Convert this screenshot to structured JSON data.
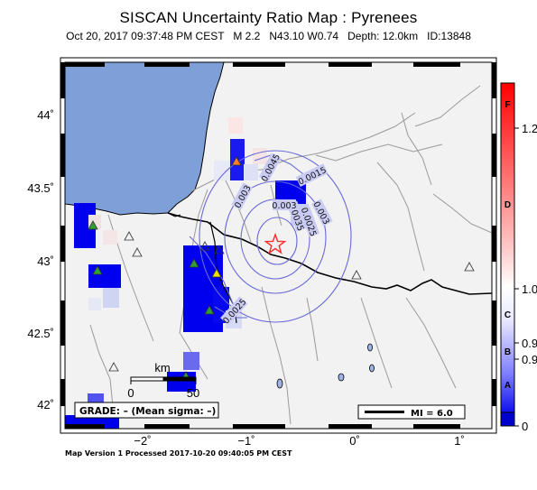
{
  "title": "SISCAN Uncertainty Ratio Map : Pyrenees",
  "subtitle": {
    "datetime": "Oct 20, 2017 09:37:48 PM CEST",
    "magnitude": "M 2.2",
    "location": "N43.10 W0.74",
    "depth": "Depth: 12.0km",
    "event_id": "ID:13848"
  },
  "axes": {
    "lon_labels": [
      "−2˚",
      "−1˚",
      "0˚",
      "1˚"
    ],
    "lat_labels": [
      "44˚",
      "43.5˚",
      "43˚",
      "42.5˚",
      "42˚"
    ]
  },
  "scale_bar": {
    "unit": "km",
    "min_label": "0",
    "max_label": "50"
  },
  "grade_box": "GRADE: – (Mean sigma: –)",
  "mi_box": "MI = 6.0",
  "contour_labels": [
    "0.0045",
    "0.0015",
    "0.003",
    "0.0035",
    "0.003",
    "0.0025",
    "0.003",
    "0.0025"
  ],
  "colorbar": {
    "letters": [
      "F",
      "D",
      "C",
      "B",
      "A"
    ],
    "values": [
      "1.2",
      "1.0",
      "0.9",
      "0.9",
      "0"
    ],
    "colors": {
      "top": "#ff0000",
      "mid": "#ffffff",
      "bottom": "#0000cc"
    }
  },
  "footer": "Map Version 1 Processed 2017-10-20 09:40:05 PM CEST",
  "colors": {
    "ocean": "#7f9fd9",
    "land": "#f2f2f2",
    "cell_blue": "#0000ee",
    "contour": "#6a6ad8",
    "epicenter": "#ff2a2a"
  },
  "icons": [
    "epicenter-star-icon",
    "station-triangle-icon"
  ]
}
